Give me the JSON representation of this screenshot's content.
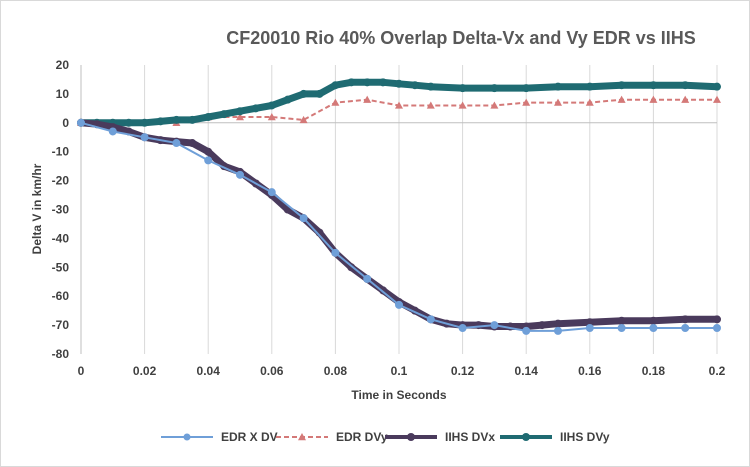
{
  "chart_data": {
    "type": "line",
    "title": "CF20010 Rio 40% Overlap Delta-Vx and Vy EDR vs IIHS",
    "xlabel": "Time in Seconds",
    "ylabel": "Delta V in km/hr",
    "xlim": [
      0,
      0.2
    ],
    "ylim": [
      -80,
      20
    ],
    "x_ticks": [
      "0",
      "0.02",
      "0.04",
      "0.06",
      "0.08",
      "0.1",
      "0.12",
      "0.14",
      "0.16",
      "0.18",
      "0.2"
    ],
    "y_ticks": [
      "20",
      "10",
      "0",
      "-10",
      "-20",
      "-30",
      "-40",
      "-50",
      "-60",
      "-70",
      "-80"
    ],
    "grid": "vertical",
    "legend_position": "bottom",
    "series": [
      {
        "name": "EDR X DV",
        "color": "#6f9fd8",
        "style": "solid-circle-markers",
        "x": [
          0,
          0.01,
          0.02,
          0.03,
          0.04,
          0.05,
          0.06,
          0.07,
          0.08,
          0.09,
          0.1,
          0.11,
          0.12,
          0.13,
          0.14,
          0.15,
          0.16,
          0.17,
          0.18,
          0.19,
          0.2
        ],
        "y": [
          0,
          -3,
          -5,
          -7,
          -13,
          -18,
          -24,
          -33,
          -45,
          -54,
          -63,
          -68,
          -71,
          -70,
          -72,
          -72,
          -71,
          -71,
          -71,
          -71,
          -71
        ]
      },
      {
        "name": "EDR DVy",
        "color": "#d47978",
        "style": "dashed-triangle-markers",
        "x": [
          0,
          0.01,
          0.02,
          0.03,
          0.04,
          0.05,
          0.06,
          0.07,
          0.08,
          0.09,
          0.1,
          0.11,
          0.12,
          0.13,
          0.14,
          0.15,
          0.16,
          0.17,
          0.18,
          0.19,
          0.2
        ],
        "y": [
          0,
          0,
          0,
          0,
          2,
          2,
          2,
          1,
          7,
          8,
          6,
          6,
          6,
          6,
          7,
          7,
          7,
          8,
          8,
          8,
          8
        ]
      },
      {
        "name": "IIHS DVx",
        "color": "#4a3a5c",
        "style": "thick-dense-markers",
        "x": [
          0,
          0.005,
          0.01,
          0.015,
          0.02,
          0.025,
          0.03,
          0.035,
          0.04,
          0.045,
          0.05,
          0.055,
          0.06,
          0.065,
          0.07,
          0.075,
          0.08,
          0.085,
          0.09,
          0.095,
          0.1,
          0.105,
          0.11,
          0.115,
          0.12,
          0.125,
          0.13,
          0.135,
          0.14,
          0.145,
          0.15,
          0.16,
          0.17,
          0.18,
          0.19,
          0.2
        ],
        "y": [
          0,
          -0.5,
          -1.5,
          -3,
          -5,
          -6,
          -6.5,
          -7,
          -10,
          -15,
          -17,
          -21,
          -25,
          -30,
          -33,
          -38,
          -45,
          -50,
          -54,
          -58,
          -62,
          -65,
          -68,
          -69.5,
          -70,
          -70,
          -70.5,
          -70.5,
          -70.5,
          -70,
          -69.5,
          -69,
          -68.5,
          -68.5,
          -68,
          -68
        ]
      },
      {
        "name": "IIHS DVy",
        "color": "#1f6b72",
        "style": "thick-dense-markers",
        "x": [
          0,
          0.005,
          0.01,
          0.015,
          0.02,
          0.025,
          0.03,
          0.035,
          0.04,
          0.045,
          0.05,
          0.055,
          0.06,
          0.065,
          0.07,
          0.075,
          0.08,
          0.085,
          0.09,
          0.095,
          0.1,
          0.105,
          0.11,
          0.12,
          0.13,
          0.14,
          0.15,
          0.16,
          0.17,
          0.18,
          0.19,
          0.2
        ],
        "y": [
          0,
          0,
          0,
          0,
          0,
          0.5,
          1,
          1,
          2,
          3,
          4,
          5,
          6,
          8,
          10,
          10,
          13,
          14,
          14,
          14,
          13.5,
          13,
          12.5,
          12,
          12,
          12,
          12.5,
          12.5,
          13,
          13,
          13,
          12.5
        ]
      }
    ]
  }
}
